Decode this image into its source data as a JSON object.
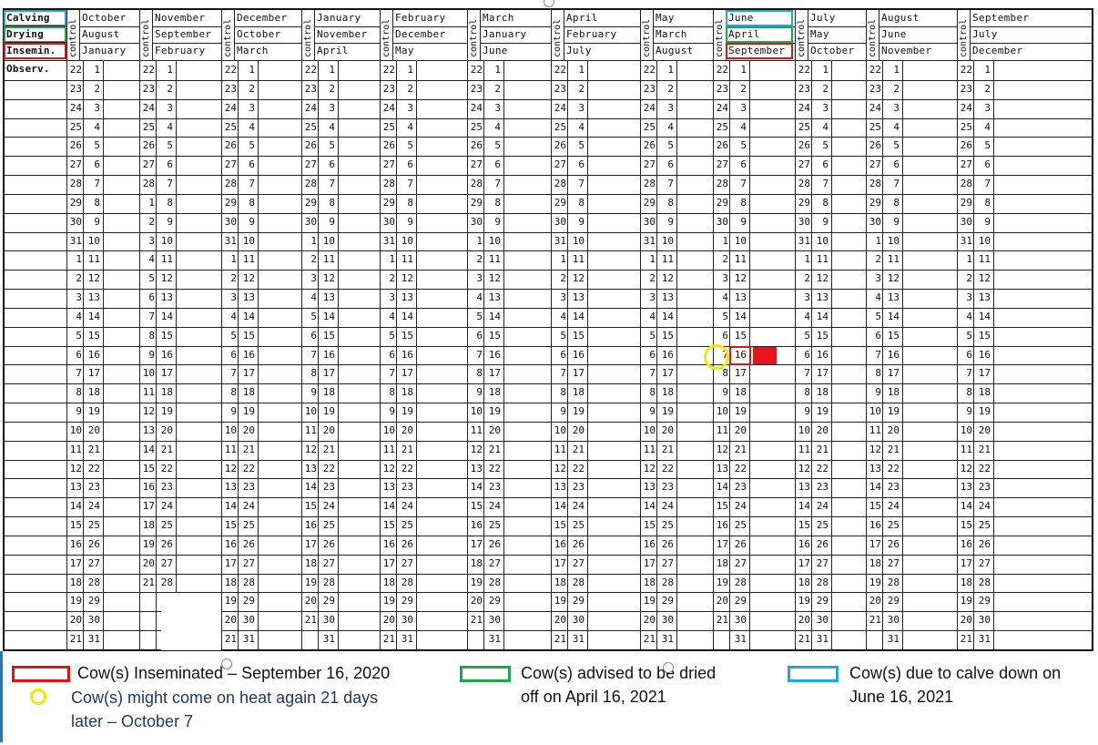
{
  "row_labels": [
    "Calving",
    "Drying",
    "Insemin.",
    "Observ."
  ],
  "control_label": "control",
  "month_groups": [
    {
      "calving": "October",
      "drying": "August",
      "insemin": "January"
    },
    {
      "calving": "November",
      "drying": "September",
      "insemin": "February"
    },
    {
      "calving": "December",
      "drying": "October",
      "insemin": "March"
    },
    {
      "calving": "January",
      "drying": "November",
      "insemin": "April"
    },
    {
      "calving": "February",
      "drying": "December",
      "insemin": "May"
    },
    {
      "calving": "March",
      "drying": "January",
      "insemin": "June"
    },
    {
      "calving": "April",
      "drying": "February",
      "insemin": "July"
    },
    {
      "calving": "May",
      "drying": "March",
      "insemin": "August"
    },
    {
      "calving": "June",
      "drying": "April",
      "insemin": "September"
    },
    {
      "calving": "July",
      "drying": "May",
      "insemin": "October"
    },
    {
      "calving": "August",
      "drying": "June",
      "insemin": "November"
    },
    {
      "calving": "September",
      "drying": "July",
      "insemin": "December"
    }
  ],
  "days": [
    "1",
    "2",
    "3",
    "4",
    "5",
    "6",
    "7",
    "8",
    "9",
    "10",
    "11",
    "12",
    "13",
    "14",
    "15",
    "16",
    "17",
    "18",
    "19",
    "20",
    "21",
    "22",
    "23",
    "24",
    "25",
    "26",
    "27",
    "28",
    "29",
    "30",
    "31"
  ],
  "control_days": [
    [
      "22",
      "23",
      "24",
      "25",
      "26",
      "27",
      "28",
      "29",
      "30",
      "31",
      "1",
      "2",
      "3",
      "4",
      "5",
      "6",
      "7",
      "8",
      "9",
      "10",
      "11",
      "12",
      "13",
      "14",
      "15",
      "16",
      "17",
      "18",
      "19",
      "20",
      "21"
    ],
    [
      "22",
      "23",
      "24",
      "25",
      "26",
      "27",
      "28",
      "1",
      "2",
      "3",
      "4",
      "5",
      "6",
      "7",
      "8",
      "9",
      "10",
      "11",
      "12",
      "13",
      "14",
      "15",
      "16",
      "17",
      "18",
      "19",
      "20",
      "21",
      "",
      "",
      ""
    ],
    [
      "22",
      "23",
      "24",
      "25",
      "26",
      "27",
      "28",
      "29",
      "30",
      "31",
      "1",
      "2",
      "3",
      "4",
      "5",
      "6",
      "7",
      "8",
      "9",
      "10",
      "11",
      "12",
      "13",
      "14",
      "15",
      "16",
      "17",
      "18",
      "19",
      "20",
      "21"
    ],
    [
      "22",
      "23",
      "24",
      "25",
      "26",
      "27",
      "28",
      "29",
      "30",
      "1",
      "2",
      "3",
      "4",
      "5",
      "6",
      "7",
      "8",
      "9",
      "10",
      "11",
      "12",
      "13",
      "14",
      "15",
      "16",
      "17",
      "18",
      "19",
      "20",
      "21",
      ""
    ],
    [
      "22",
      "23",
      "24",
      "25",
      "26",
      "27",
      "28",
      "29",
      "30",
      "31",
      "1",
      "2",
      "3",
      "4",
      "5",
      "6",
      "7",
      "8",
      "9",
      "10",
      "11",
      "12",
      "13",
      "14",
      "15",
      "16",
      "17",
      "18",
      "19",
      "20",
      "21"
    ],
    [
      "22",
      "23",
      "24",
      "25",
      "26",
      "27",
      "28",
      "29",
      "30",
      "1",
      "2",
      "3",
      "4",
      "5",
      "6",
      "7",
      "8",
      "9",
      "10",
      "11",
      "12",
      "13",
      "14",
      "15",
      "16",
      "17",
      "18",
      "19",
      "20",
      "21",
      ""
    ],
    [
      "22",
      "23",
      "24",
      "25",
      "26",
      "27",
      "28",
      "29",
      "30",
      "31",
      "1",
      "2",
      "3",
      "4",
      "5",
      "6",
      "7",
      "8",
      "9",
      "10",
      "11",
      "12",
      "13",
      "14",
      "15",
      "16",
      "17",
      "18",
      "19",
      "20",
      "21"
    ],
    [
      "22",
      "23",
      "24",
      "25",
      "26",
      "27",
      "28",
      "29",
      "30",
      "31",
      "1",
      "2",
      "3",
      "4",
      "5",
      "6",
      "7",
      "8",
      "9",
      "10",
      "11",
      "12",
      "13",
      "14",
      "15",
      "16",
      "17",
      "18",
      "19",
      "20",
      "21"
    ],
    [
      "22",
      "23",
      "24",
      "25",
      "26",
      "27",
      "28",
      "29",
      "30",
      "1",
      "2",
      "3",
      "4",
      "5",
      "6",
      "7",
      "8",
      "9",
      "10",
      "11",
      "12",
      "13",
      "14",
      "15",
      "16",
      "17",
      "18",
      "19",
      "20",
      "21",
      ""
    ],
    [
      "22",
      "23",
      "24",
      "25",
      "26",
      "27",
      "28",
      "29",
      "30",
      "31",
      "1",
      "2",
      "3",
      "4",
      "5",
      "6",
      "7",
      "8",
      "9",
      "10",
      "11",
      "12",
      "13",
      "14",
      "15",
      "16",
      "17",
      "18",
      "19",
      "20",
      "21"
    ],
    [
      "22",
      "23",
      "24",
      "25",
      "26",
      "27",
      "28",
      "29",
      "30",
      "1",
      "2",
      "3",
      "4",
      "5",
      "6",
      "7",
      "8",
      "9",
      "10",
      "11",
      "12",
      "13",
      "14",
      "15",
      "16",
      "17",
      "18",
      "19",
      "20",
      "21",
      ""
    ],
    [
      "22",
      "23",
      "24",
      "25",
      "26",
      "27",
      "28",
      "29",
      "30",
      "31",
      "1",
      "2",
      "3",
      "4",
      "5",
      "6",
      "7",
      "8",
      "9",
      "10",
      "11",
      "12",
      "13",
      "14",
      "15",
      "16",
      "17",
      "18",
      "19",
      "20",
      "21"
    ]
  ],
  "legend": {
    "inseminated": "Cow(s) Inseminated – September 16, 2020",
    "heat_line1": "Cow(s) might come on heat again 21 days",
    "heat_line2": "later – October 7",
    "dried_line1": "Cow(s) advised to be dried",
    "dried_line2": "off on April 16, 2021",
    "calve_line1": "Cow(s) due to calve down on",
    "calve_line2": "June 16, 2021"
  },
  "colors": {
    "calving": "#1ea7e1",
    "drying": "#1fa64a",
    "insemin": "#e01414",
    "heat": "#f2e700",
    "heat_text": "#1f3864",
    "marker_fill": "#e8141a"
  }
}
